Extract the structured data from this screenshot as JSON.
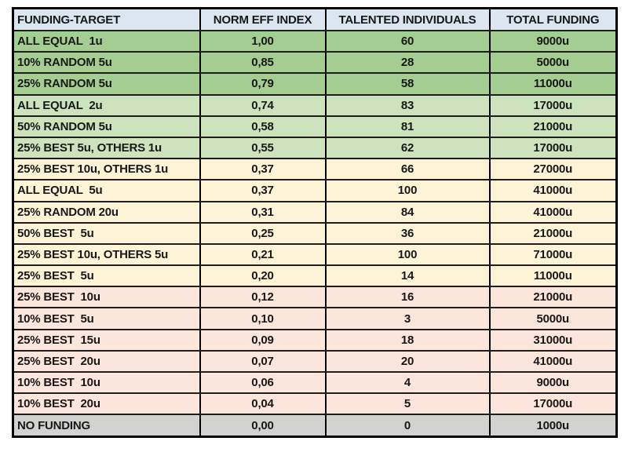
{
  "chart_data": {
    "type": "table",
    "columns": [
      {
        "label": "FUNDING-TARGET",
        "align": "left"
      },
      {
        "label": "NORM EFF INDEX",
        "align": "center"
      },
      {
        "label": "TALENTED INDIVIDUALS",
        "align": "center"
      },
      {
        "label": "TOTAL FUNDING",
        "align": "center"
      }
    ],
    "rows": [
      {
        "cells": [
          "ALL EQUAL  1u",
          "1,00",
          "60",
          "9000u"
        ],
        "band": "green_dark"
      },
      {
        "cells": [
          "10% RANDOM 5u",
          "0,85",
          "28",
          "5000u"
        ],
        "band": "green_dark"
      },
      {
        "cells": [
          "25% RANDOM 5u",
          "0,79",
          "58",
          "11000u"
        ],
        "band": "green_dark"
      },
      {
        "cells": [
          "ALL EQUAL  2u",
          "0,74",
          "83",
          "17000u"
        ],
        "band": "green_light"
      },
      {
        "cells": [
          "50% RANDOM 5u",
          "0,58",
          "81",
          "21000u"
        ],
        "band": "green_light"
      },
      {
        "cells": [
          "25% BEST 5u, OTHERS 1u",
          "0,55",
          "62",
          "17000u"
        ],
        "band": "green_light"
      },
      {
        "cells": [
          "25% BEST 10u, OTHERS 1u",
          "0,37",
          "66",
          "27000u"
        ],
        "band": "yellow"
      },
      {
        "cells": [
          "ALL EQUAL  5u",
          "0,37",
          "100",
          "41000u"
        ],
        "band": "yellow"
      },
      {
        "cells": [
          "25% RANDOM 20u",
          "0,31",
          "84",
          "41000u"
        ],
        "band": "yellow"
      },
      {
        "cells": [
          "50% BEST  5u",
          "0,25",
          "36",
          "21000u"
        ],
        "band": "yellow"
      },
      {
        "cells": [
          "25% BEST 10u, OTHERS 5u",
          "0,21",
          "100",
          "71000u"
        ],
        "band": "yellow"
      },
      {
        "cells": [
          "25% BEST  5u",
          "0,20",
          "14",
          "11000u"
        ],
        "band": "yellow"
      },
      {
        "cells": [
          "25% BEST  10u",
          "0,12",
          "16",
          "21000u"
        ],
        "band": "pink"
      },
      {
        "cells": [
          "10% BEST  5u",
          "0,10",
          "3",
          "5000u"
        ],
        "band": "pink"
      },
      {
        "cells": [
          "25% BEST  15u",
          "0,09",
          "18",
          "31000u"
        ],
        "band": "pink"
      },
      {
        "cells": [
          "25% BEST  20u",
          "0,07",
          "20",
          "41000u"
        ],
        "band": "pink"
      },
      {
        "cells": [
          "10% BEST  10u",
          "0,06",
          "4",
          "9000u"
        ],
        "band": "pink"
      },
      {
        "cells": [
          "10% BEST  20u",
          "0,04",
          "5",
          "17000u"
        ],
        "band": "pink"
      },
      {
        "cells": [
          "NO FUNDING",
          "0,00",
          "0",
          "1000u"
        ],
        "band": "gray"
      }
    ],
    "band_colors": {
      "header": "#dce6f1",
      "green_dark": "#a4cd91",
      "green_light": "#cce3bd",
      "yellow": "#fdf4d7",
      "pink": "#fce5da",
      "gray": "#d2d2d0"
    },
    "text_color": "#181818",
    "border_color": "#000000"
  }
}
